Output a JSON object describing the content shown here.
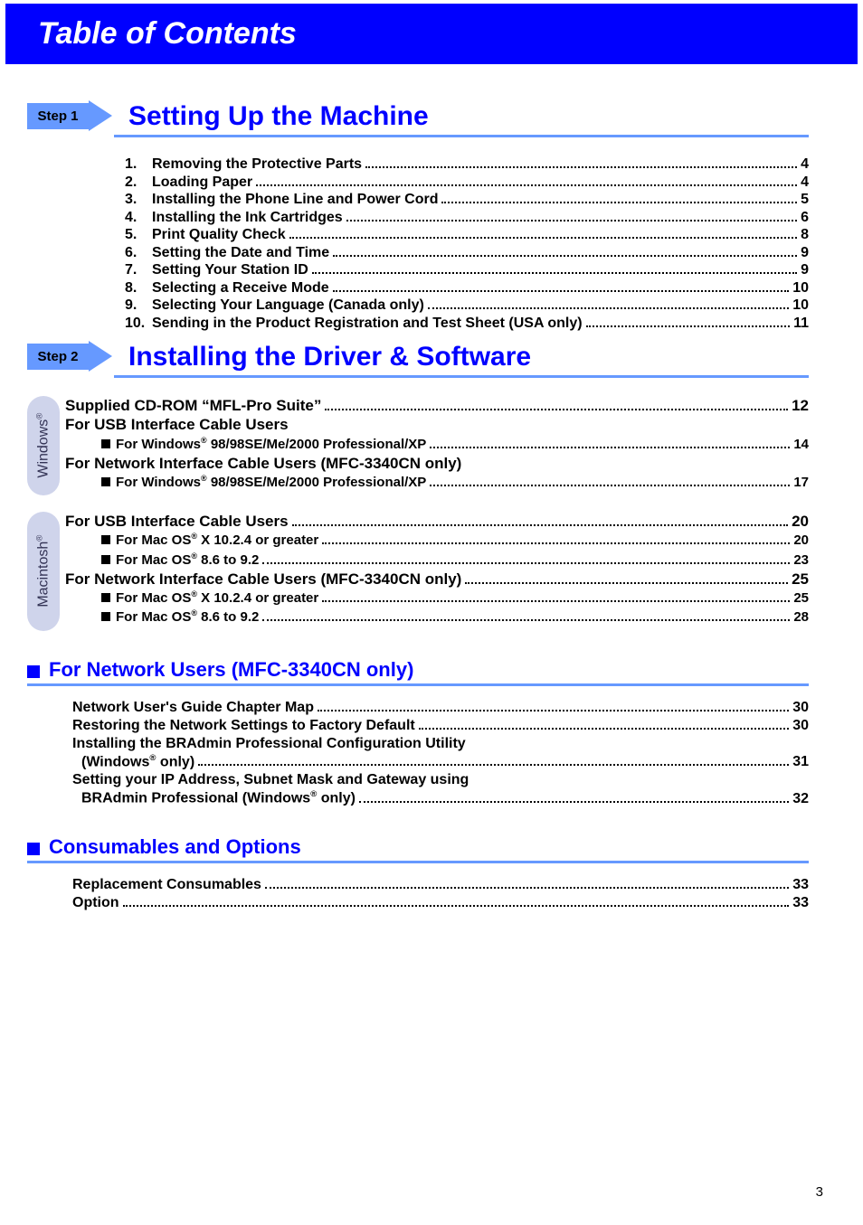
{
  "header": "Table of Contents",
  "pageNumber": "3",
  "step1": {
    "tag": "Step 1",
    "title": "Setting Up the Machine",
    "items": [
      {
        "n": "1.",
        "t": "Removing the Protective Parts",
        "p": "4"
      },
      {
        "n": "2.",
        "t": "Loading Paper",
        "p": "4"
      },
      {
        "n": "3.",
        "t": "Installing the Phone Line and Power Cord",
        "p": "5"
      },
      {
        "n": "4.",
        "t": "Installing the Ink Cartridges",
        "p": "6"
      },
      {
        "n": "5.",
        "t": "Print Quality Check",
        "p": "8"
      },
      {
        "n": "6.",
        "t": "Setting the Date and Time",
        "p": "9"
      },
      {
        "n": "7.",
        "t": "Setting Your Station ID",
        "p": "9"
      },
      {
        "n": "8.",
        "t": "Selecting a Receive Mode",
        "p": "10"
      },
      {
        "n": "9.",
        "t": "Selecting Your Language (Canada only)",
        "p": "10"
      },
      {
        "n": "10.",
        "t": "Sending in the Product Registration and Test Sheet (USA only)",
        "p": "11"
      }
    ]
  },
  "step2": {
    "tag": "Step 2",
    "title": "Installing the Driver & Software",
    "windowsTab": "Windows",
    "macTab": "Macintosh",
    "winBlock": {
      "line1": {
        "t": "Supplied CD-ROM “MFL-Pro Suite”",
        "p": "12"
      },
      "line2": "For USB Interface Cable Users",
      "line3": {
        "pre": "For Windows",
        "sup": "®",
        "post": " 98/98SE/Me/2000 Professional/XP",
        "p": "14"
      },
      "line4": "For Network Interface Cable Users (MFC-3340CN only)",
      "line5": {
        "pre": "For Windows",
        "sup": "®",
        "post": " 98/98SE/Me/2000 Professional/XP",
        "p": "17"
      }
    },
    "macBlock": {
      "line1": {
        "t": "For USB Interface Cable Users",
        "p": "20"
      },
      "line2": {
        "pre": "For Mac OS",
        "sup": "®",
        "post": " X 10.2.4 or greater",
        "p": "20"
      },
      "line3": {
        "pre": "For Mac OS",
        "sup": "®",
        "post": " 8.6 to 9.2",
        "p": "23"
      },
      "line4": {
        "t": "For Network Interface Cable Users (MFC-3340CN only)",
        "p": "25"
      },
      "line5": {
        "pre": "For Mac OS",
        "sup": "®",
        "post": " X 10.2.4 or greater",
        "p": "25"
      },
      "line6": {
        "pre": "For Mac OS",
        "sup": "®",
        "post": " 8.6 to 9.2",
        "p": "28"
      }
    }
  },
  "section3": {
    "title": "For Network Users (MFC-3340CN only)",
    "items": [
      {
        "t": "Network User's Guide Chapter Map",
        "p": "30"
      },
      {
        "t": "Restoring the Network Settings to Factory Default",
        "p": "30"
      }
    ],
    "multi1": {
      "l1": "Installing the BRAdmin Professional Configuration Utility",
      "l2_pre": "(Windows",
      "l2_sup": "®",
      "l2_post": " only)",
      "p": "31"
    },
    "multi2": {
      "l1": "Setting your IP Address, Subnet Mask and Gateway using",
      "l2_pre": "BRAdmin Professional (Windows",
      "l2_sup": "®",
      "l2_post": " only)",
      "p": "32"
    }
  },
  "section4": {
    "title": "Consumables and Options",
    "items": [
      {
        "t": "Replacement Consumables",
        "p": "33"
      },
      {
        "t": "Option",
        "p": "33"
      }
    ]
  }
}
